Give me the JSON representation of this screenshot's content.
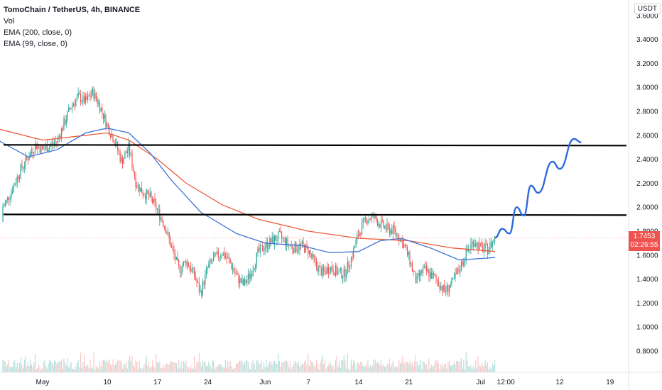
{
  "legend": {
    "symbol": "TomoChain / TetherUS, 4h, BINANCE",
    "vol": "Vol",
    "ema200": "EMA (200, close, 0)",
    "ema99": "EMA (99, close, 0)"
  },
  "price_axis": {
    "unit": "USDT",
    "labels": [
      "3.6000",
      "3.4000",
      "3.2000",
      "3.0000",
      "2.8000",
      "2.6000",
      "2.4000",
      "2.2000",
      "2.0000",
      "1.8000",
      "1.6000",
      "1.4000",
      "1.2000",
      "1.0000",
      "0.8000"
    ]
  },
  "time_axis": {
    "labels": [
      "May",
      "10",
      "17",
      "24",
      "Jun",
      "7",
      "14",
      "21",
      "Jul",
      "12:00",
      "12",
      "19"
    ]
  },
  "last_price": {
    "value": "1.7453",
    "countdown": "02:26:55"
  },
  "colors": {
    "up": "#26a69a",
    "down": "#ef5350",
    "ema200": "#f05a3a",
    "ema99": "#3f74d6",
    "projection": "#2f6bdf",
    "levels": "#000000",
    "last_price_line": "#ef5350"
  },
  "chart_data": {
    "type": "candlestick",
    "symbol": "TOMO/USDT",
    "timeframe": "4h",
    "exchange": "BINANCE",
    "ylim": [
      0.7,
      3.62
    ],
    "x_ticks": [
      {
        "label": "May",
        "x": "2021-05-01"
      },
      {
        "label": "10",
        "x": "2021-05-10"
      },
      {
        "label": "17",
        "x": "2021-05-17"
      },
      {
        "label": "24",
        "x": "2021-05-24"
      },
      {
        "label": "Jun",
        "x": "2021-06-01"
      },
      {
        "label": "7",
        "x": "2021-06-07"
      },
      {
        "label": "14",
        "x": "2021-06-14"
      },
      {
        "label": "21",
        "x": "2021-06-21"
      },
      {
        "label": "Jul",
        "x": "2021-07-01"
      },
      {
        "label": "12:00",
        "x": "2021-07-04 12:00"
      },
      {
        "label": "12",
        "x": "2021-07-12"
      },
      {
        "label": "19",
        "x": "2021-07-19"
      }
    ],
    "price_path": [
      {
        "x": "2021-04-24",
        "y": 1.88
      },
      {
        "x": "2021-04-26",
        "y": 2.05
      },
      {
        "x": "2021-04-28",
        "y": 2.32
      },
      {
        "x": "2021-04-30",
        "y": 2.52
      },
      {
        "x": "2021-05-01",
        "y": 2.48
      },
      {
        "x": "2021-05-03",
        "y": 2.55
      },
      {
        "x": "2021-05-05",
        "y": 2.85
      },
      {
        "x": "2021-05-06",
        "y": 2.92
      },
      {
        "x": "2021-05-07",
        "y": 2.88
      },
      {
        "x": "2021-05-08",
        "y": 2.96
      },
      {
        "x": "2021-05-09",
        "y": 2.84
      },
      {
        "x": "2021-05-10",
        "y": 2.68
      },
      {
        "x": "2021-05-11",
        "y": 2.56
      },
      {
        "x": "2021-05-12",
        "y": 2.38
      },
      {
        "x": "2021-05-13",
        "y": 2.5
      },
      {
        "x": "2021-05-14",
        "y": 2.2
      },
      {
        "x": "2021-05-15",
        "y": 2.12
      },
      {
        "x": "2021-05-16",
        "y": 2.08
      },
      {
        "x": "2021-05-17",
        "y": 1.97
      },
      {
        "x": "2021-05-18",
        "y": 1.85
      },
      {
        "x": "2021-05-19",
        "y": 1.65
      },
      {
        "x": "2021-05-20",
        "y": 1.48
      },
      {
        "x": "2021-05-21",
        "y": 1.55
      },
      {
        "x": "2021-05-22",
        "y": 1.45
      },
      {
        "x": "2021-05-23",
        "y": 1.28
      },
      {
        "x": "2021-05-24",
        "y": 1.5
      },
      {
        "x": "2021-05-25",
        "y": 1.58
      },
      {
        "x": "2021-05-26",
        "y": 1.62
      },
      {
        "x": "2021-05-27",
        "y": 1.55
      },
      {
        "x": "2021-05-28",
        "y": 1.42
      },
      {
        "x": "2021-05-29",
        "y": 1.35
      },
      {
        "x": "2021-05-30",
        "y": 1.45
      },
      {
        "x": "2021-05-31",
        "y": 1.62
      },
      {
        "x": "2021-06-01",
        "y": 1.68
      },
      {
        "x": "2021-06-02",
        "y": 1.72
      },
      {
        "x": "2021-06-03",
        "y": 1.76
      },
      {
        "x": "2021-06-04",
        "y": 1.7
      },
      {
        "x": "2021-06-05",
        "y": 1.66
      },
      {
        "x": "2021-06-06",
        "y": 1.68
      },
      {
        "x": "2021-06-07",
        "y": 1.64
      },
      {
        "x": "2021-06-08",
        "y": 1.52
      },
      {
        "x": "2021-06-09",
        "y": 1.45
      },
      {
        "x": "2021-06-10",
        "y": 1.5
      },
      {
        "x": "2021-06-11",
        "y": 1.46
      },
      {
        "x": "2021-06-12",
        "y": 1.44
      },
      {
        "x": "2021-06-13",
        "y": 1.58
      },
      {
        "x": "2021-06-14",
        "y": 1.78
      },
      {
        "x": "2021-06-15",
        "y": 1.9
      },
      {
        "x": "2021-06-16",
        "y": 1.92
      },
      {
        "x": "2021-06-17",
        "y": 1.86
      },
      {
        "x": "2021-06-18",
        "y": 1.82
      },
      {
        "x": "2021-06-19",
        "y": 1.8
      },
      {
        "x": "2021-06-20",
        "y": 1.72
      },
      {
        "x": "2021-06-21",
        "y": 1.58
      },
      {
        "x": "2021-06-22",
        "y": 1.38
      },
      {
        "x": "2021-06-23",
        "y": 1.48
      },
      {
        "x": "2021-06-24",
        "y": 1.44
      },
      {
        "x": "2021-06-25",
        "y": 1.38
      },
      {
        "x": "2021-06-26",
        "y": 1.3
      },
      {
        "x": "2021-06-27",
        "y": 1.36
      },
      {
        "x": "2021-06-28",
        "y": 1.48
      },
      {
        "x": "2021-06-29",
        "y": 1.62
      },
      {
        "x": "2021-06-30",
        "y": 1.72
      },
      {
        "x": "2021-07-01",
        "y": 1.66
      },
      {
        "x": "2021-07-02",
        "y": 1.65
      },
      {
        "x": "2021-07-03",
        "y": 1.745
      }
    ],
    "ema_200": [
      {
        "x": "2021-04-24",
        "y": 2.65
      },
      {
        "x": "2021-05-01",
        "y": 2.56
      },
      {
        "x": "2021-05-07",
        "y": 2.6
      },
      {
        "x": "2021-05-10",
        "y": 2.62
      },
      {
        "x": "2021-05-13",
        "y": 2.56
      },
      {
        "x": "2021-05-17",
        "y": 2.4
      },
      {
        "x": "2021-05-21",
        "y": 2.2
      },
      {
        "x": "2021-05-26",
        "y": 2.02
      },
      {
        "x": "2021-05-31",
        "y": 1.9
      },
      {
        "x": "2021-06-07",
        "y": 1.8
      },
      {
        "x": "2021-06-14",
        "y": 1.74
      },
      {
        "x": "2021-06-21",
        "y": 1.72
      },
      {
        "x": "2021-06-27",
        "y": 1.66
      },
      {
        "x": "2021-07-03",
        "y": 1.63
      }
    ],
    "ema_99": [
      {
        "x": "2021-04-24",
        "y": 2.55
      },
      {
        "x": "2021-04-29",
        "y": 2.42
      },
      {
        "x": "2021-05-03",
        "y": 2.48
      },
      {
        "x": "2021-05-07",
        "y": 2.62
      },
      {
        "x": "2021-05-10",
        "y": 2.66
      },
      {
        "x": "2021-05-13",
        "y": 2.62
      },
      {
        "x": "2021-05-16",
        "y": 2.45
      },
      {
        "x": "2021-05-19",
        "y": 2.22
      },
      {
        "x": "2021-05-23",
        "y": 1.96
      },
      {
        "x": "2021-05-28",
        "y": 1.78
      },
      {
        "x": "2021-06-01",
        "y": 1.7
      },
      {
        "x": "2021-06-06",
        "y": 1.68
      },
      {
        "x": "2021-06-10",
        "y": 1.62
      },
      {
        "x": "2021-06-14",
        "y": 1.63
      },
      {
        "x": "2021-06-17",
        "y": 1.72
      },
      {
        "x": "2021-06-20",
        "y": 1.74
      },
      {
        "x": "2021-06-24",
        "y": 1.66
      },
      {
        "x": "2021-06-28",
        "y": 1.56
      },
      {
        "x": "2021-07-03",
        "y": 1.58
      }
    ],
    "horizontal_levels": [
      2.52,
      1.94
    ],
    "projection": [
      {
        "x": "2021-07-03",
        "y": 1.745
      },
      {
        "x": "2021-07-04",
        "y": 1.82
      },
      {
        "x": "2021-07-05",
        "y": 1.78
      },
      {
        "x": "2021-07-06",
        "y": 2.0
      },
      {
        "x": "2021-07-07",
        "y": 1.93
      },
      {
        "x": "2021-07-08",
        "y": 2.18
      },
      {
        "x": "2021-07-09",
        "y": 2.12
      },
      {
        "x": "2021-07-11",
        "y": 2.38
      },
      {
        "x": "2021-07-12",
        "y": 2.32
      },
      {
        "x": "2021-07-14",
        "y": 2.57
      },
      {
        "x": "2021-07-15",
        "y": 2.54
      }
    ],
    "volume": "shown at bottom of chart, unlabeled"
  }
}
